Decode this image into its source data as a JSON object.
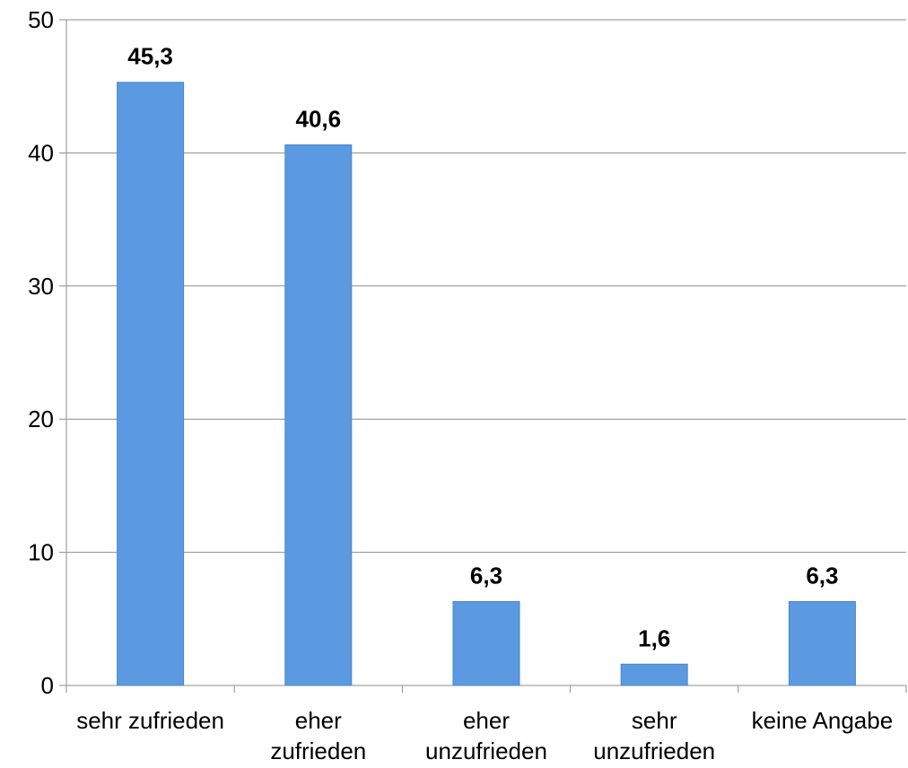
{
  "chart_data": {
    "type": "bar",
    "categories": [
      [
        "sehr zufrieden"
      ],
      [
        "eher",
        "zufrieden"
      ],
      [
        "eher",
        "unzufrieden"
      ],
      [
        "sehr",
        "unzufrieden"
      ],
      [
        "keine Angabe"
      ]
    ],
    "values": [
      45.3,
      40.6,
      6.3,
      1.6,
      6.3
    ],
    "data_labels": [
      "45,3",
      "40,6",
      "6,3",
      "1,6",
      "6,3"
    ],
    "ylim": [
      0,
      50
    ],
    "yticks": [
      0,
      10,
      20,
      30,
      40,
      50
    ],
    "ytick_labels": [
      "0",
      "10",
      "20",
      "30",
      "40",
      "50"
    ],
    "grid": true,
    "legend": "none",
    "bar_color": "#5b9ae0",
    "bar_edge_color": "#4a86c8",
    "grid_color": "#8c8c8c"
  }
}
